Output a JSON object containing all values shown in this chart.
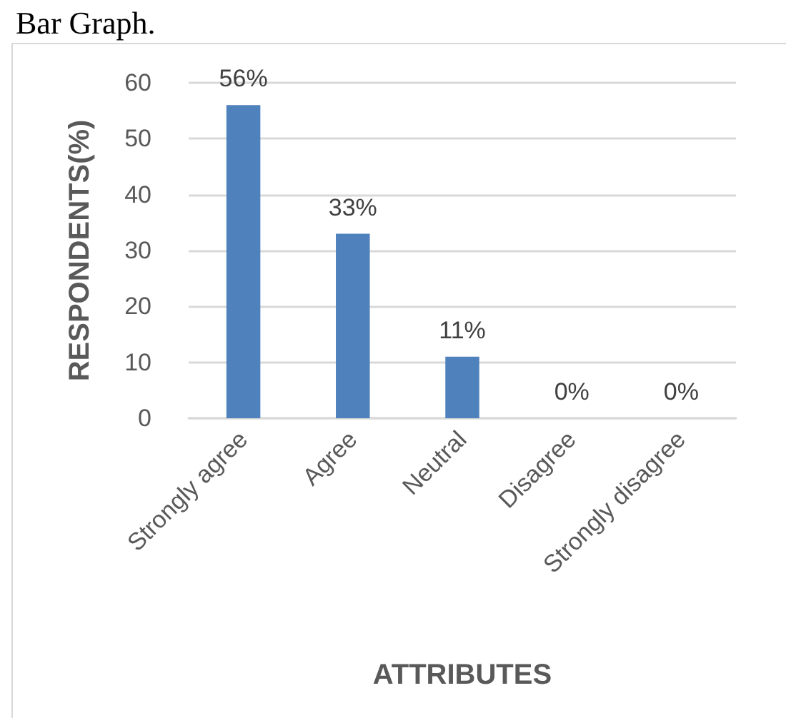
{
  "chart_data": {
    "type": "bar",
    "title": "Bar Graph.",
    "xlabel": "ATTRIBUTES",
    "ylabel": "RESPONDENTS(%)",
    "categories": [
      "Strongly agree",
      "Agree",
      "Neutral",
      "Disagree",
      "Strongly disagree"
    ],
    "values": [
      56,
      33,
      11,
      0,
      0
    ],
    "value_labels": [
      "56%",
      "33%",
      "11%",
      "0%",
      "0%"
    ],
    "color": "#4f81bd",
    "ylim": [
      0,
      60
    ],
    "yticks": [
      0,
      10,
      20,
      30,
      40,
      50,
      60
    ],
    "grid": "y"
  }
}
